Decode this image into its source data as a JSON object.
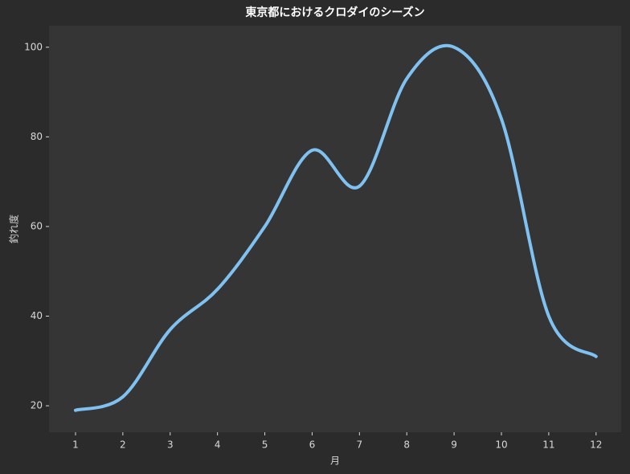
{
  "chart_data": {
    "type": "line",
    "title": "東京都におけるクロダイのシーズン",
    "x_label": "月",
    "y_label": "釣れ度",
    "x": [
      1,
      2,
      3,
      4,
      5,
      6,
      7,
      8,
      9,
      10,
      11,
      12
    ],
    "series": [
      {
        "name": "釣れ度",
        "color": "#7fc1f0",
        "values": [
          19,
          22,
          37,
          46,
          60,
          77,
          69,
          93,
          100,
          84,
          40,
          31
        ]
      }
    ],
    "xlim": [
      0.44,
      12.53
    ],
    "ylim": [
      14.1,
      104.8
    ],
    "xticks": [
      1,
      2,
      3,
      4,
      5,
      6,
      7,
      8,
      9,
      10,
      11,
      12
    ],
    "yticks": [
      20,
      40,
      60,
      80,
      100
    ],
    "grid": false,
    "smooth": true
  }
}
